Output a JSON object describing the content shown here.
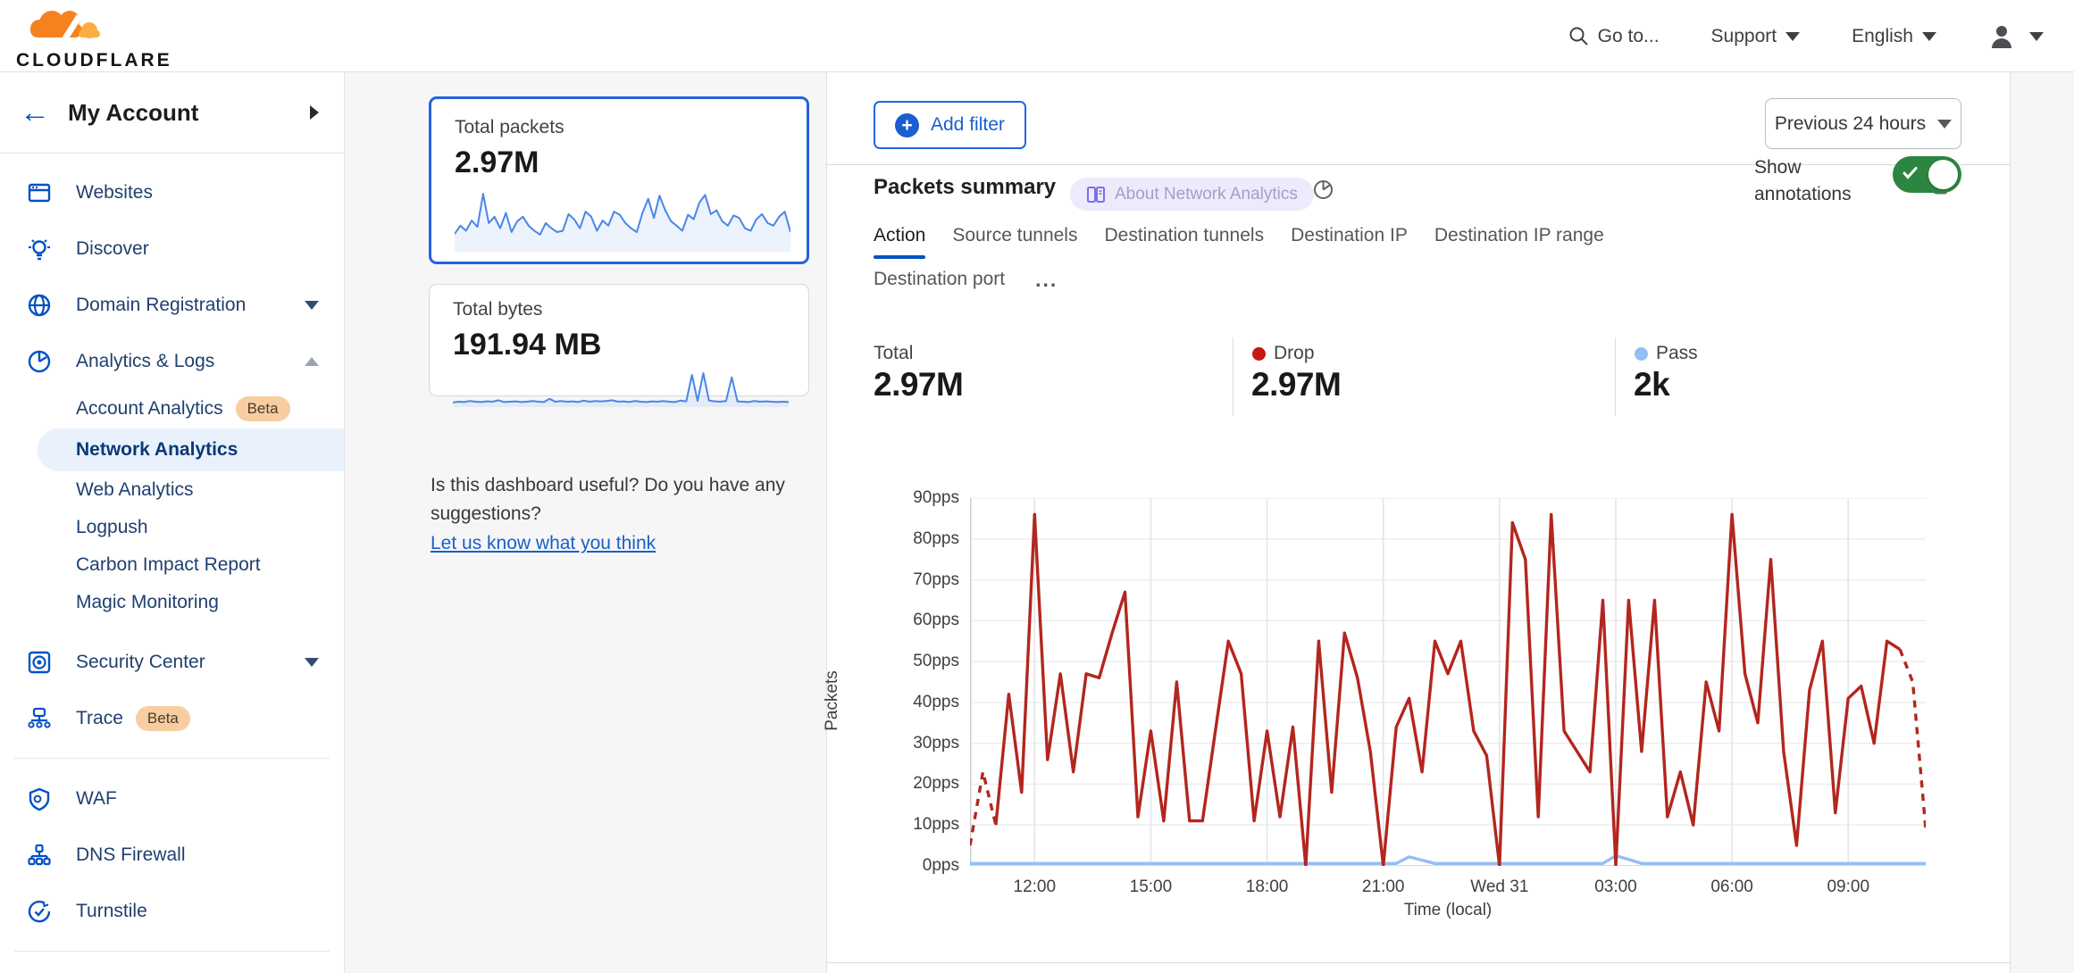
{
  "colors": {
    "accent_blue": "#0051c3",
    "link_blue": "#1a5fc8",
    "drop_line": "#b3261e",
    "drop_dot": "#c41710",
    "pass_line": "#94bef5",
    "toggle_green": "#2c8540",
    "spark_blue": "#4a86e8",
    "selected_card_border": "#2264e0",
    "beta_badge_bg": "#f8cda2"
  },
  "header": {
    "logo": "CLOUDFLARE",
    "goto_label": "Go to...",
    "support_label": "Support",
    "language_label": "English"
  },
  "sidebar": {
    "account_title": "My Account",
    "websites": "Websites",
    "discover": "Discover",
    "domain_registration": "Domain Registration",
    "analytics_logs": "Analytics & Logs",
    "account_analytics": "Account Analytics",
    "account_analytics_badge": "Beta",
    "network_analytics": "Network Analytics",
    "web_analytics": "Web Analytics",
    "logpush": "Logpush",
    "carbon": "Carbon Impact Report",
    "magic_monitoring": "Magic Monitoring",
    "security_center": "Security Center",
    "trace": "Trace",
    "trace_badge": "Beta",
    "waf": "WAF",
    "dns_firewall": "DNS Firewall",
    "turnstile": "Turnstile"
  },
  "cards": {
    "packets": {
      "title": "Total packets",
      "value": "2.97M"
    },
    "bytes": {
      "title": "Total bytes",
      "value": "191.94 MB"
    }
  },
  "feedback": {
    "question": "Is this dashboard useful? Do you have any suggestions?",
    "link": "Let us know what you think"
  },
  "toolbar": {
    "add_filter": "Add filter",
    "time_range": "Previous 24 hours"
  },
  "panel": {
    "title": "Packets summary",
    "about_badge": "About Network Analytics",
    "tabs": [
      {
        "label": "Action",
        "active": true
      },
      {
        "label": "Source tunnels"
      },
      {
        "label": "Destination tunnels"
      },
      {
        "label": "Destination IP"
      },
      {
        "label": "Destination IP range"
      },
      {
        "label": "Destination port"
      }
    ],
    "more_tabs": "...",
    "show_annotations": "Show annotations",
    "stats": [
      {
        "label": "Total",
        "value": "2.97M"
      },
      {
        "label": "Drop",
        "value": "2.97M",
        "dot": "#c41710"
      },
      {
        "label": "Pass",
        "value": "2k",
        "dot": "#94bef5"
      }
    ]
  },
  "chart_data": [
    {
      "id": "packets-summary",
      "type": "line",
      "title": "Packets summary",
      "xlabel": "Time (local)",
      "ylabel": "Packets",
      "ylim": [
        0,
        90
      ],
      "grid": true,
      "legend_position": "stats-row-above-chart",
      "yticks": [
        "0pps",
        "10pps",
        "20pps",
        "30pps",
        "40pps",
        "50pps",
        "60pps",
        "70pps",
        "80pps",
        "90pps"
      ],
      "xticks": {
        "labels": [
          "12:00",
          "15:00",
          "18:00",
          "21:00",
          "Wed 31",
          "03:00",
          "06:00",
          "09:00"
        ],
        "indices": [
          5,
          14,
          23,
          32,
          41,
          50,
          59,
          68
        ]
      },
      "series": [
        {
          "name": "Drop",
          "color": "#b3261e",
          "dashed_head": 2,
          "dashed_tail": 2,
          "values": [
            5,
            23,
            10,
            42,
            18,
            86,
            26,
            47,
            23,
            47,
            46,
            57,
            67,
            12,
            33,
            11,
            45,
            11,
            11,
            33,
            55,
            47,
            11,
            33,
            12,
            34,
            0,
            55,
            18,
            57,
            46,
            28,
            0,
            34,
            41,
            23,
            55,
            47,
            55,
            33,
            27,
            0,
            84,
            75,
            12,
            86,
            33,
            28,
            23,
            65,
            0,
            65,
            28,
            65,
            12,
            23,
            10,
            45,
            33,
            86,
            47,
            35,
            75,
            28,
            5,
            43,
            55,
            13,
            41,
            44,
            30,
            55,
            53,
            45,
            9
          ]
        },
        {
          "name": "Pass",
          "color": "#94bef5",
          "values": [
            0.6,
            0.6,
            0.6,
            0.6,
            0.6,
            0.6,
            0.6,
            0.6,
            0.6,
            0.6,
            0.6,
            0.6,
            0.6,
            0.6,
            0.6,
            0.6,
            0.6,
            0.6,
            0.6,
            0.6,
            0.6,
            0.6,
            0.6,
            0.6,
            0.6,
            0.6,
            0.6,
            0.6,
            0.6,
            0.6,
            0.6,
            0.6,
            0.6,
            0.6,
            2.2,
            1.4,
            0.6,
            0.6,
            0.6,
            0.6,
            0.6,
            0.6,
            0.6,
            0.6,
            0.6,
            0.6,
            0.6,
            0.6,
            0.6,
            0.6,
            2.5,
            1.6,
            0.6,
            0.6,
            0.6,
            0.6,
            0.6,
            0.6,
            0.6,
            0.6,
            0.6,
            0.6,
            0.6,
            0.6,
            0.6,
            0.6,
            0.6,
            0.6,
            0.6,
            0.6,
            0.6,
            0.6,
            0.6,
            0.6,
            0.6
          ]
        }
      ]
    },
    {
      "id": "total-packets-spark",
      "type": "line",
      "title": "Total packets sparkline",
      "series": [
        {
          "name": "packets",
          "color": "#4a86e8",
          "values": [
            25,
            38,
            30,
            46,
            36,
            88,
            42,
            52,
            34,
            58,
            28,
            45,
            52,
            38,
            30,
            24,
            42,
            34,
            28,
            30,
            56,
            48,
            34,
            60,
            52,
            30,
            46,
            38,
            60,
            55,
            42,
            34,
            28,
            58,
            80,
            50,
            85,
            62,
            45,
            38,
            30,
            55,
            48,
            74,
            86,
            56,
            62,
            45,
            38,
            54,
            50,
            34,
            30,
            48,
            56,
            42,
            38,
            52,
            60,
            28
          ]
        }
      ]
    },
    {
      "id": "total-bytes-spark",
      "type": "line",
      "title": "Total bytes sparkline",
      "series": [
        {
          "name": "bytes",
          "color": "#4a86e8",
          "values": [
            8,
            10,
            9,
            12,
            10,
            9,
            11,
            10,
            14,
            9,
            10,
            11,
            9,
            10,
            12,
            10,
            9,
            18,
            10,
            12,
            10,
            11,
            9,
            13,
            10,
            12,
            11,
            12,
            14,
            10,
            11,
            9,
            12,
            10,
            9,
            11,
            10,
            12,
            10,
            9,
            13,
            11,
            85,
            12,
            90,
            13,
            11,
            10,
            12,
            78,
            11,
            10,
            9,
            12,
            10,
            11,
            10,
            9,
            10,
            9
          ]
        }
      ]
    }
  ]
}
